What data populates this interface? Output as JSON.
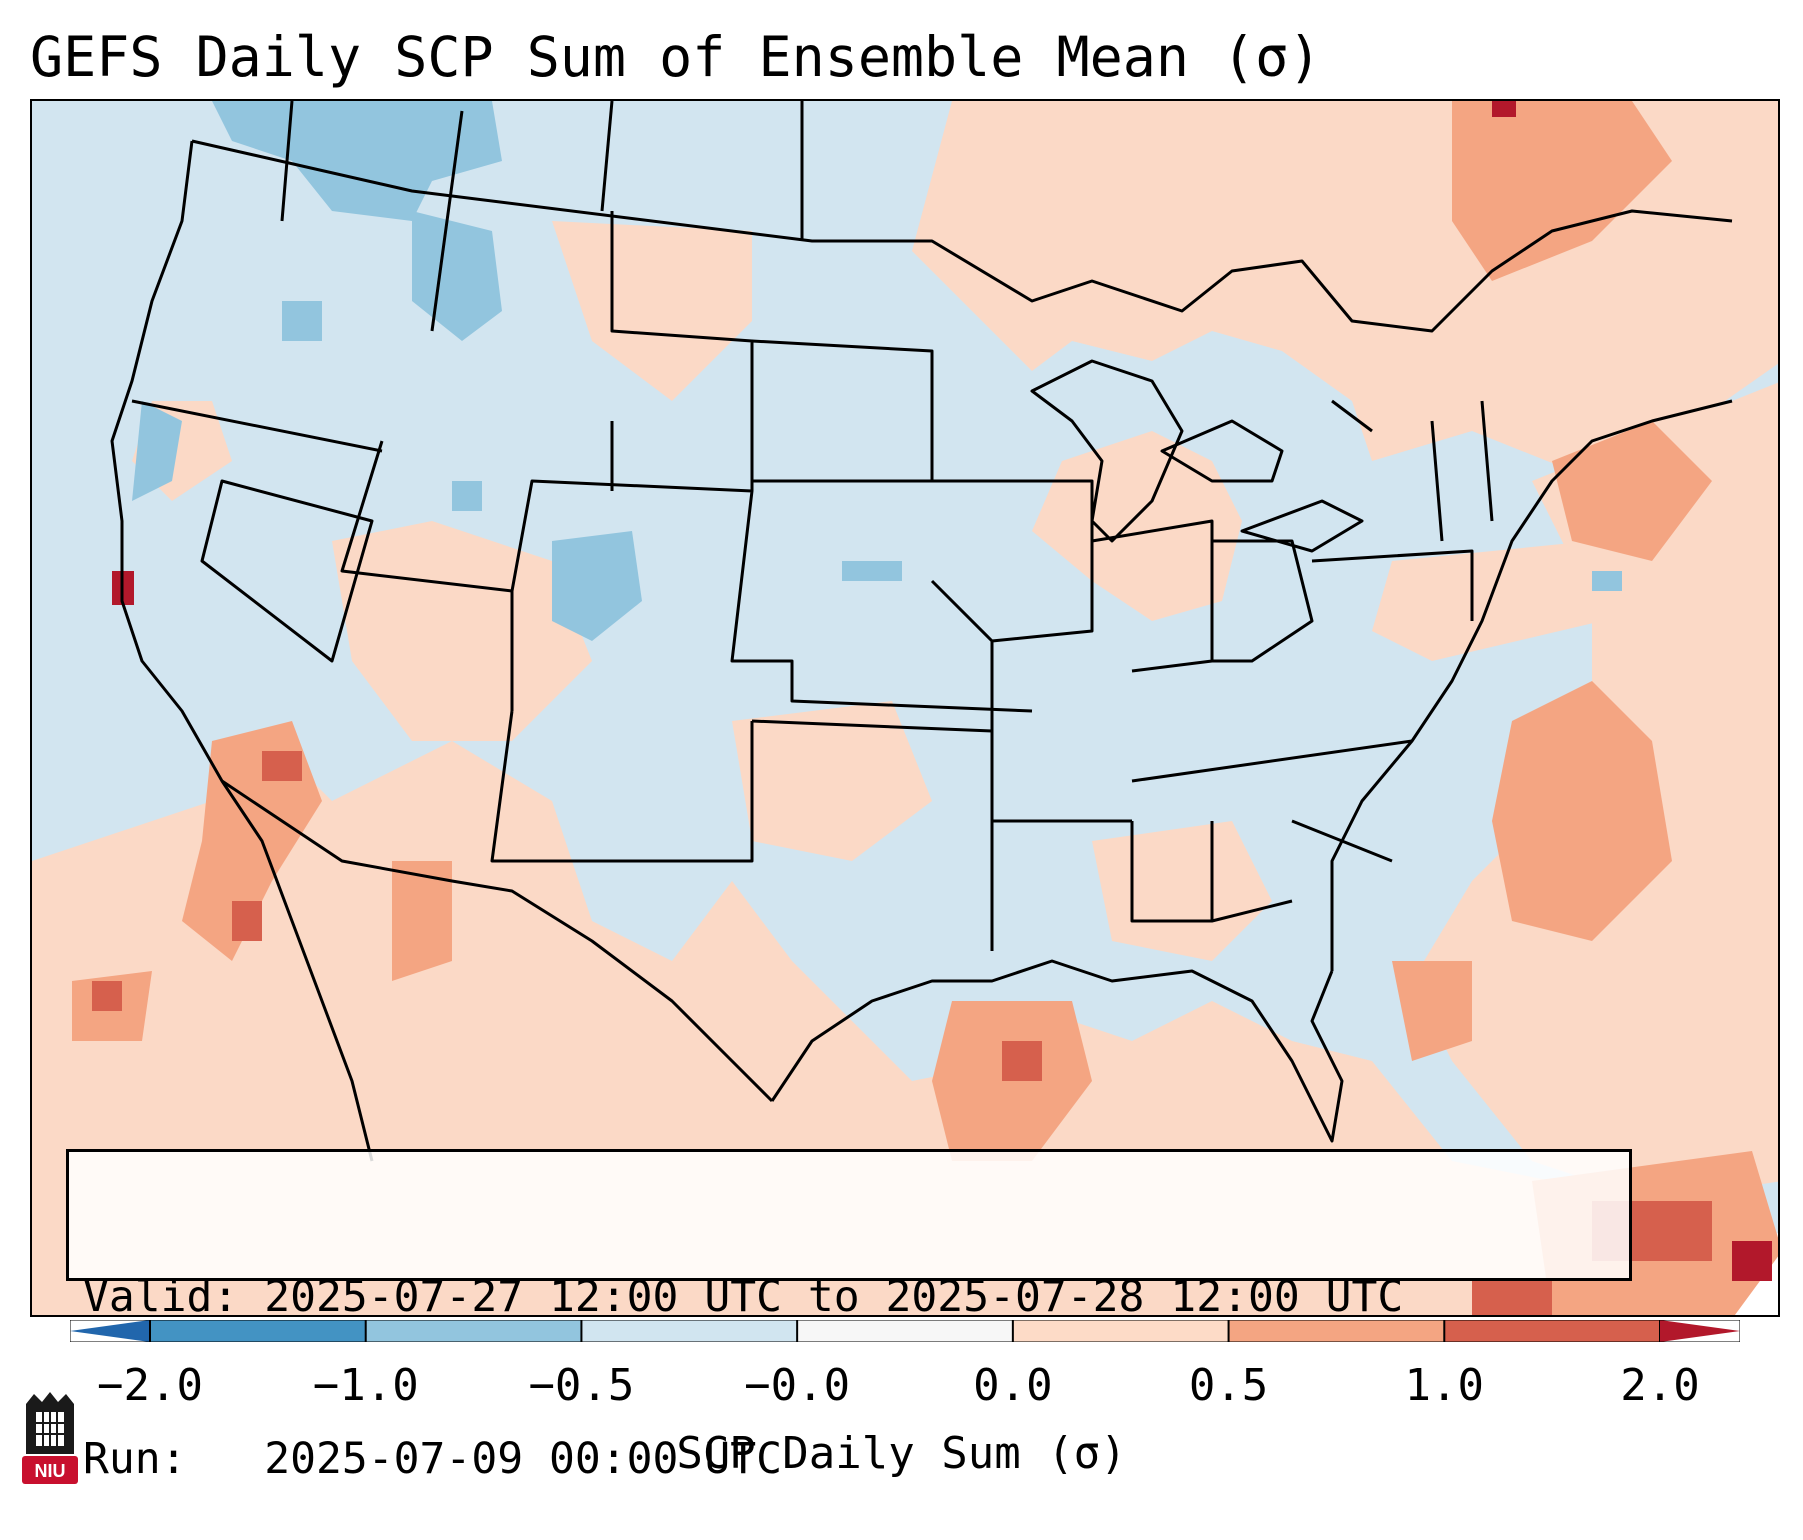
{
  "title": "GEFS Daily SCP Sum of Ensemble Mean (σ)",
  "info": {
    "valid_line": "Valid: 2025-07-27 12:00 UTC to 2025-07-28 12:00 UTC",
    "run_line": "Run:   2025-07-09 00:00 UTC"
  },
  "colorbar": {
    "label": "SCP Daily Sum (σ)",
    "ticks": [
      "−2.0",
      "−1.0",
      "−0.5",
      "−0.0",
      "0.0",
      "0.5",
      "1.0",
      "2.0"
    ],
    "colors": [
      "#2166ac",
      "#4393c3",
      "#92c5de",
      "#d1e5f0",
      "#f7f7f7",
      "#fddbc7",
      "#f4a582",
      "#d6604d",
      "#b2182b"
    ]
  },
  "logo": {
    "text": "NIU",
    "icon": "niu-shield-logo-icon"
  },
  "map": {
    "region": "Contiguous United States",
    "background_color": "#d2e5f0",
    "warm_color": "#fbd9c6",
    "warmer_color": "#f4a582",
    "hot_color": "#d6604d",
    "extreme_color": "#b2182b",
    "cool_color": "#92c5de"
  }
}
